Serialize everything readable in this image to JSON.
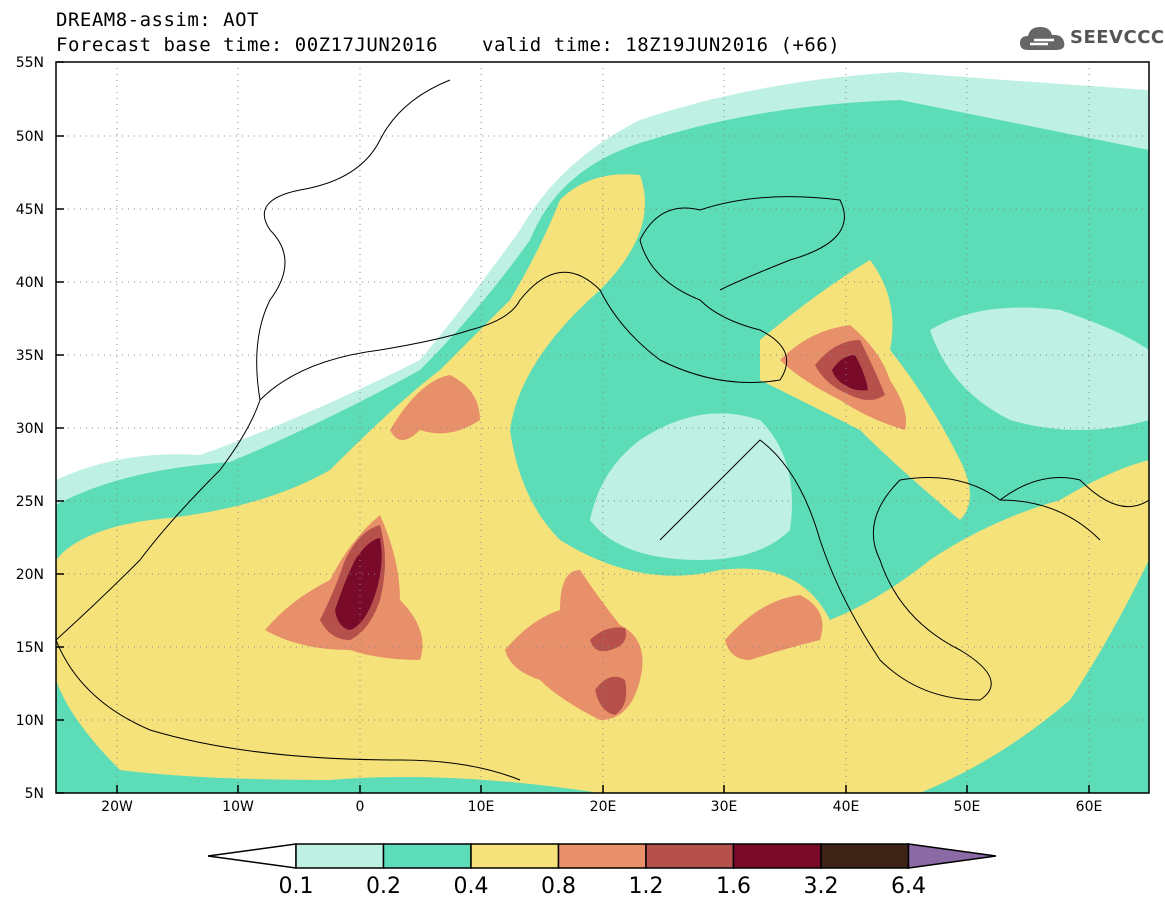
{
  "title": {
    "line1": "DREAM8-assim: AOT",
    "line2": "Forecast base time: 00Z17JUN2016",
    "valid": "valid time: 18Z19JUN2016 (+66)"
  },
  "logo": {
    "text": "SEEVCCC",
    "icon": "cloud-icon"
  },
  "map": {
    "lon_range": [
      -25,
      65
    ],
    "lat_range": [
      5,
      55
    ],
    "lat_labels": [
      "55N",
      "50N",
      "45N",
      "40N",
      "35N",
      "30N",
      "25N",
      "20N",
      "15N",
      "10N",
      "5N"
    ],
    "lon_labels": [
      "20W",
      "10W",
      "0",
      "10E",
      "20E",
      "30E",
      "40E",
      "50E",
      "60E"
    ]
  },
  "legend": {
    "boundaries": [
      "0.1",
      "0.2",
      "0.4",
      "0.8",
      "1.2",
      "1.6",
      "3.2",
      "6.4"
    ],
    "colors": [
      "#ffffff",
      "#bff0e4",
      "#5ddcb8",
      "#f5e27a",
      "#e8906a",
      "#b5504a",
      "#7a0a2a",
      "#3d2416",
      "#8c6aa5"
    ]
  }
}
